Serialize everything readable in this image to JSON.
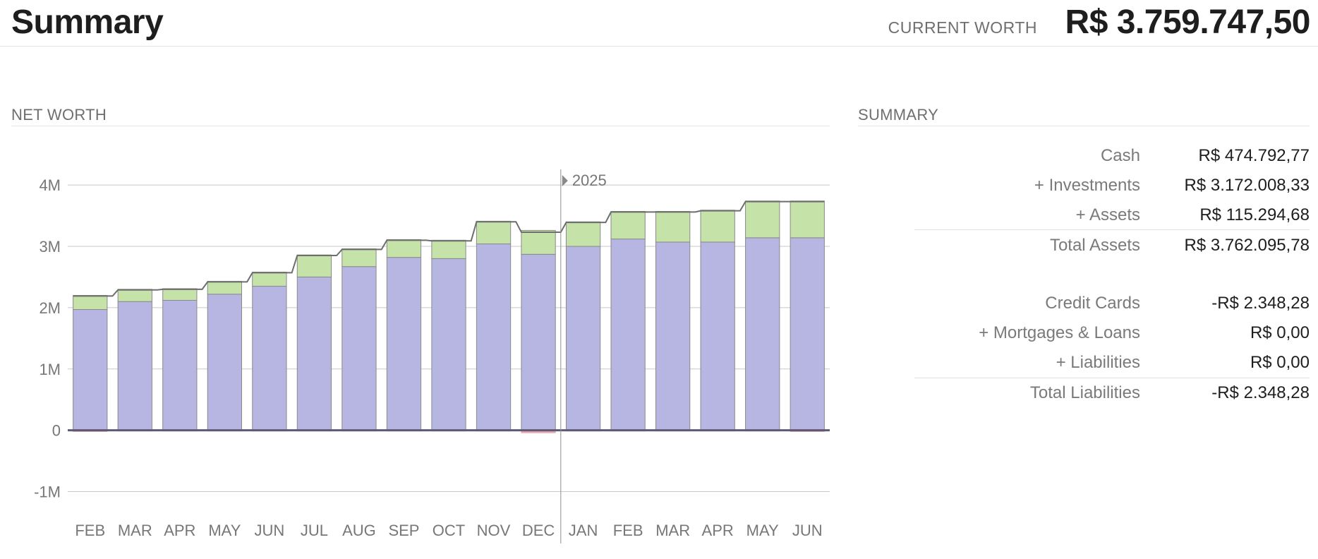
{
  "header": {
    "title": "Summary",
    "current_worth_label": "CURRENT WORTH",
    "current_worth_value": "R$ 3.759.747,50"
  },
  "net_worth": {
    "section_title": "NET WORTH"
  },
  "summary": {
    "section_title": "SUMMARY",
    "rows": [
      {
        "label": "Cash",
        "value": "R$ 474.792,77"
      },
      {
        "label": "+ Investments",
        "value": "R$ 3.172.008,33"
      },
      {
        "label": "+ Assets",
        "value": "R$ 115.294,68"
      },
      {
        "label": "Total Assets",
        "value": "R$ 3.762.095,78"
      },
      {
        "label": "Credit Cards",
        "value": "-R$ 2.348,28"
      },
      {
        "label": "+ Mortgages & Loans",
        "value": "R$ 0,00"
      },
      {
        "label": "+ Liabilities",
        "value": "R$ 0,00"
      },
      {
        "label": "Total Liabilities",
        "value": "-R$ 2.348,28"
      }
    ]
  },
  "chart_data": {
    "type": "bar",
    "stacked": true,
    "title": "",
    "year_marker": "2025",
    "year_marker_before_index": 11,
    "categories": [
      "FEB",
      "MAR",
      "APR",
      "MAY",
      "JUN",
      "JUL",
      "AUG",
      "SEP",
      "OCT",
      "NOV",
      "DEC",
      "JAN",
      "FEB",
      "MAR",
      "APR",
      "MAY",
      "JUN"
    ],
    "series": [
      {
        "values": [
          1.97,
          2.1,
          2.12,
          2.22,
          2.35,
          2.5,
          2.67,
          2.82,
          2.8,
          3.04,
          2.87,
          3.0,
          3.12,
          3.07,
          3.07,
          3.14,
          3.14
        ]
      },
      {
        "values": [
          0.23,
          0.2,
          0.19,
          0.21,
          0.23,
          0.36,
          0.29,
          0.29,
          0.3,
          0.37,
          0.39,
          0.4,
          0.45,
          0.5,
          0.52,
          0.6,
          0.6
        ]
      },
      {
        "values": [
          -0.02,
          -0.01,
          -0.01,
          -0.01,
          -0.01,
          -0.01,
          -0.01,
          -0.01,
          -0.01,
          -0.01,
          -0.04,
          -0.01,
          -0.01,
          -0.01,
          -0.01,
          -0.01,
          -0.02
        ]
      }
    ],
    "net_worth_line": [
      2.19,
      2.29,
      2.3,
      2.42,
      2.57,
      2.85,
      2.95,
      3.1,
      3.09,
      3.4,
      3.23,
      3.39,
      3.56,
      3.56,
      3.58,
      3.73,
      3.73
    ],
    "y_ticks": [
      "4M",
      "3M",
      "2M",
      "1M",
      "0",
      "-1M"
    ],
    "y_tick_values": [
      4,
      3,
      2,
      1,
      0,
      -1
    ],
    "ylim": [
      -1.5,
      4.6
    ],
    "grid": true,
    "colors": {
      "primary": "#b7b5e1",
      "secondary": "#c5e3a8",
      "negative": "#e8a8a8",
      "outline": "#8a8a8a",
      "line": "#6e6e6e",
      "grid": "#c8c8c8",
      "baseline": "#5f5a74",
      "axis_text": "#777777"
    }
  }
}
